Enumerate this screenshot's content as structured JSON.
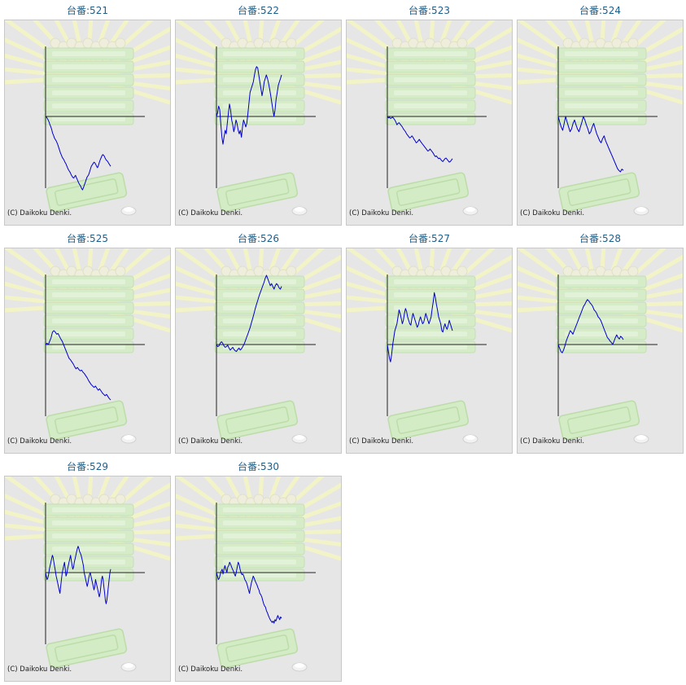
{
  "credit_text": "(C) Daikoku Denki.",
  "colors": {
    "line": "#0000cc",
    "axis": "#222222",
    "title": "#1c5f8c",
    "panel_bg": "#e6e6e6"
  },
  "chart_data": [
    {
      "type": "line",
      "title": "台番:521",
      "values": [
        0,
        -1,
        -3,
        -5,
        -8,
        -12,
        -15,
        -19,
        -24,
        -27,
        -31,
        -33,
        -35,
        -38,
        -41,
        -45,
        -49,
        -53,
        -56,
        -59,
        -61,
        -63,
        -66,
        -68,
        -71,
        -74,
        -77,
        -79,
        -81,
        -84,
        -86,
        -88,
        -89,
        -87,
        -85,
        -88,
        -91,
        -94,
        -97,
        -99,
        -101,
        -104,
        -106,
        -103,
        -99,
        -96,
        -92,
        -88,
        -86,
        -84,
        -80,
        -76,
        -72,
        -70,
        -68,
        -66,
        -67,
        -69,
        -72,
        -74,
        -71,
        -67,
        -63,
        -60,
        -57,
        -55,
        -56,
        -58,
        -61,
        -63,
        -64,
        -66,
        -68,
        -70,
        -72
      ]
    },
    {
      "type": "line",
      "title": "台番:522",
      "values": [
        0,
        5,
        15,
        10,
        -10,
        -30,
        -40,
        -30,
        -20,
        -25,
        -10,
        5,
        18,
        10,
        -5,
        -12,
        -22,
        -15,
        -5,
        -10,
        -20,
        -25,
        -20,
        -30,
        -15,
        -5,
        -10,
        -15,
        -10,
        5,
        20,
        35,
        40,
        45,
        50,
        60,
        68,
        72,
        70,
        60,
        50,
        40,
        30,
        38,
        50,
        55,
        60,
        55,
        48,
        40,
        30,
        20,
        10,
        0,
        10,
        25,
        35,
        45,
        50,
        55,
        60
      ]
    },
    {
      "type": "line",
      "title": "台番:523",
      "values": [
        0,
        -2,
        -1,
        -3,
        -2,
        -1,
        -3,
        -5,
        -8,
        -12,
        -10,
        -9,
        -11,
        -13,
        -15,
        -18,
        -20,
        -22,
        -25,
        -27,
        -29,
        -31,
        -30,
        -28,
        -30,
        -33,
        -35,
        -38,
        -37,
        -35,
        -33,
        -36,
        -38,
        -40,
        -42,
        -44,
        -46,
        -48,
        -50,
        -49,
        -47,
        -49,
        -51,
        -53,
        -56,
        -58,
        -57,
        -59,
        -61,
        -60,
        -62,
        -64,
        -65,
        -63,
        -61,
        -60,
        -62,
        -64,
        -66,
        -65,
        -63,
        -61
      ]
    },
    {
      "type": "line",
      "title": "台番:524",
      "values": [
        0,
        -8,
        -15,
        -20,
        -10,
        0,
        -8,
        -15,
        -22,
        -18,
        -10,
        -5,
        -12,
        -18,
        -22,
        -15,
        -8,
        0,
        -5,
        -12,
        -18,
        -25,
        -22,
        -15,
        -10,
        -18,
        -25,
        -30,
        -35,
        -38,
        -32,
        -28,
        -35,
        -40,
        -45,
        -50,
        -55,
        -60,
        -65,
        -70,
        -75,
        -78,
        -80,
        -76,
        -78
      ]
    },
    {
      "type": "line",
      "title": "台番:525",
      "values": [
        0,
        2,
        0,
        5,
        10,
        18,
        20,
        18,
        15,
        16,
        12,
        8,
        5,
        0,
        -5,
        -10,
        -15,
        -20,
        -22,
        -25,
        -28,
        -32,
        -35,
        -33,
        -36,
        -38,
        -37,
        -40,
        -42,
        -45,
        -48,
        -52,
        -55,
        -58,
        -60,
        -62,
        -60,
        -63,
        -66,
        -64,
        -67,
        -70,
        -72,
        -74,
        -72,
        -75,
        -78,
        -80
      ]
    },
    {
      "type": "line",
      "title": "台番:526",
      "values": [
        0,
        -3,
        -2,
        2,
        4,
        2,
        -2,
        -4,
        -3,
        -1,
        -5,
        -8,
        -6,
        -4,
        -7,
        -9,
        -10,
        -7,
        -5,
        -8,
        -6,
        -3,
        0,
        5,
        10,
        15,
        20,
        25,
        32,
        38,
        45,
        52,
        58,
        64,
        70,
        75,
        80,
        85,
        90,
        96,
        100,
        95,
        90,
        85,
        88,
        84,
        80,
        85,
        88,
        86,
        82,
        80,
        84
      ]
    },
    {
      "type": "line",
      "title": "台番:527",
      "values": [
        0,
        -10,
        -20,
        -25,
        -15,
        0,
        10,
        20,
        25,
        30,
        40,
        50,
        45,
        38,
        30,
        35,
        45,
        52,
        48,
        40,
        35,
        30,
        28,
        38,
        45,
        40,
        35,
        30,
        25,
        28,
        35,
        40,
        35,
        30,
        32,
        38,
        45,
        40,
        35,
        30,
        35,
        40,
        52,
        62,
        75,
        68,
        58,
        50,
        40,
        35,
        30,
        20,
        18,
        25,
        30,
        25,
        22,
        28,
        35,
        30,
        25,
        20
      ]
    },
    {
      "type": "line",
      "title": "台番:528",
      "values": [
        0,
        -5,
        -10,
        -12,
        -8,
        -2,
        5,
        10,
        15,
        20,
        18,
        15,
        20,
        25,
        30,
        35,
        40,
        45,
        50,
        55,
        58,
        62,
        65,
        63,
        60,
        58,
        55,
        50,
        48,
        45,
        40,
        38,
        35,
        30,
        25,
        20,
        15,
        10,
        8,
        5,
        3,
        0,
        5,
        10,
        14,
        10,
        8,
        12,
        10,
        7
      ]
    },
    {
      "type": "line",
      "title": "台番:529",
      "values": [
        0,
        -5,
        -10,
        -8,
        -3,
        5,
        10,
        15,
        20,
        25,
        22,
        15,
        8,
        2,
        -5,
        -10,
        -15,
        -20,
        -25,
        -30,
        -20,
        -10,
        0,
        5,
        10,
        15,
        5,
        -5,
        -2,
        5,
        10,
        15,
        20,
        25,
        18,
        10,
        5,
        8,
        15,
        20,
        25,
        30,
        35,
        38,
        35,
        30,
        28,
        25,
        20,
        15,
        10,
        0,
        -5,
        -10,
        -15,
        -20,
        -15,
        -8,
        -3,
        0,
        -5,
        -10,
        -15,
        -20,
        -25,
        -20,
        -10,
        -15,
        -20,
        -25,
        -30,
        -35,
        -30,
        -20,
        -10,
        -5,
        -10,
        -20,
        -30,
        -40,
        -45,
        -40,
        -30,
        -20,
        -10,
        0,
        5
      ]
    },
    {
      "type": "line",
      "title": "台番:530",
      "values": [
        0,
        -5,
        -10,
        -8,
        -3,
        2,
        5,
        -2,
        5,
        10,
        5,
        0,
        8,
        10,
        15,
        12,
        8,
        5,
        2,
        -2,
        -5,
        0,
        8,
        15,
        12,
        5,
        0,
        -3,
        -2,
        -5,
        -10,
        -12,
        -15,
        -20,
        -25,
        -30,
        -22,
        -15,
        -10,
        -5,
        -8,
        -12,
        -15,
        -18,
        -22,
        -25,
        -30,
        -32,
        -35,
        -40,
        -45,
        -48,
        -50,
        -55,
        -58,
        -62,
        -65,
        -68,
        -70,
        -72,
        -70,
        -73,
        -68,
        -70,
        -66,
        -62,
        -65,
        -68,
        -64,
        -66
      ]
    }
  ]
}
